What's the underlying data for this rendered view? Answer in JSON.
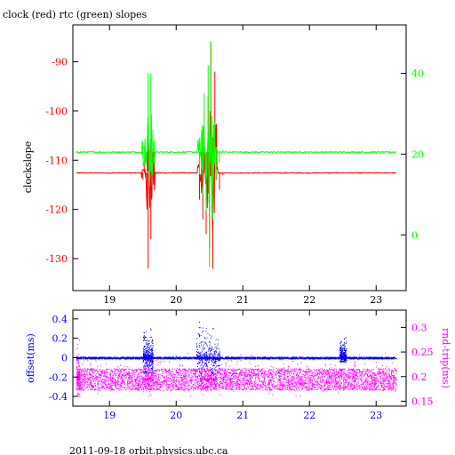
{
  "title": "clock (red) rtc (green) slopes",
  "footer": "2011-09-18 orbit.physics.ubc.ca",
  "colors": {
    "clock": "#ff0000",
    "rtc": "#00ff00",
    "offset": "#0000ff",
    "rtt": "#ff00ff",
    "axis": "#000000"
  },
  "chart_data": [
    {
      "type": "line",
      "title": "clock (red) rtc (green) slopes",
      "xlabel": "",
      "ylabel": "clockslope",
      "y2label": "",
      "xlim": [
        18.45,
        23.45
      ],
      "ylim": [
        -136.5,
        -82.5
      ],
      "y2lim": [
        -13.8,
        52
      ],
      "xticks": [
        "19",
        "20",
        "21",
        "22",
        "23"
      ],
      "yticks": [
        "-90",
        "-100",
        "-110",
        "-120",
        "-130"
      ],
      "y2ticks": [
        "40",
        "20",
        "0"
      ],
      "grid": false,
      "series": [
        {
          "name": "clock",
          "axis": "left",
          "baseline": -112.6,
          "x": [
            18.5,
            19.45,
            19.5,
            19.52,
            19.55,
            19.58,
            19.6,
            19.62,
            19.65,
            19.7,
            20.3,
            20.35,
            20.38,
            20.4,
            20.42,
            20.45,
            20.48,
            20.5,
            20.52,
            20.55,
            20.58,
            20.6,
            20.65,
            20.7,
            23.3
          ],
          "y": [
            -112.6,
            -112.6,
            -114,
            -111,
            -113,
            -132,
            -108,
            -126,
            -104,
            -112.8,
            -112.6,
            -118,
            -108,
            -122,
            -104,
            -125,
            -97,
            -128,
            -86,
            -132,
            -92,
            -114,
            -116,
            -113,
            -112.6
          ]
        },
        {
          "name": "rtc",
          "axis": "right",
          "baseline": 20.5,
          "x": [
            18.5,
            19.45,
            19.5,
            19.52,
            19.55,
            19.58,
            19.6,
            19.62,
            19.65,
            19.7,
            20.3,
            20.35,
            20.38,
            20.4,
            20.42,
            20.45,
            20.48,
            20.5,
            20.52,
            20.55,
            20.58,
            20.6,
            20.65,
            20.7,
            23.3
          ],
          "y": [
            20.3,
            20.5,
            19,
            22,
            18,
            40,
            12,
            40,
            26,
            20.6,
            20.5,
            15,
            26,
            10,
            35,
            6,
            42,
            -8,
            48,
            4,
            28,
            14,
            18,
            21,
            20.6
          ]
        }
      ]
    },
    {
      "type": "scatter",
      "xlabel": "",
      "ylabel": "offset(ms)",
      "y2label": "rnd-trip(ms)",
      "xlim": [
        18.45,
        23.45
      ],
      "ylim": [
        -0.5,
        0.49
      ],
      "y2lim": [
        0.14,
        0.335
      ],
      "xticks": [
        "19",
        "20",
        "21",
        "22",
        "23"
      ],
      "yticks": [
        "0.4",
        "0.2",
        "0",
        "-0.2",
        "-0.4"
      ],
      "y2ticks": [
        "0.3",
        "0.25",
        "0.2",
        "0.15"
      ],
      "grid": false,
      "series": [
        {
          "name": "offset",
          "axis": "left",
          "baseline": 0.0,
          "spread": 0.01,
          "bursts": [
            {
              "x": [
                19.5,
                19.65
              ],
              "ylim": [
                -0.15,
                0.45
              ]
            },
            {
              "x": [
                20.3,
                20.65
              ],
              "ylim": [
                -0.3,
                0.46
              ]
            },
            {
              "x": [
                22.45,
                22.55
              ],
              "ylim": [
                -0.04,
                0.35
              ]
            }
          ]
        },
        {
          "name": "rnd-trip",
          "axis": "right",
          "baseline": 0.195,
          "spread": 0.022,
          "bursts": [
            {
              "x": [
                18.5,
                18.55
              ],
              "ylim": [
                0.16,
                0.31
              ]
            },
            {
              "x": [
                19.5,
                19.65
              ],
              "ylim": [
                0.16,
                0.26
              ]
            },
            {
              "x": [
                20.35,
                20.6
              ],
              "ylim": [
                0.16,
                0.25
              ]
            }
          ]
        }
      ]
    }
  ]
}
